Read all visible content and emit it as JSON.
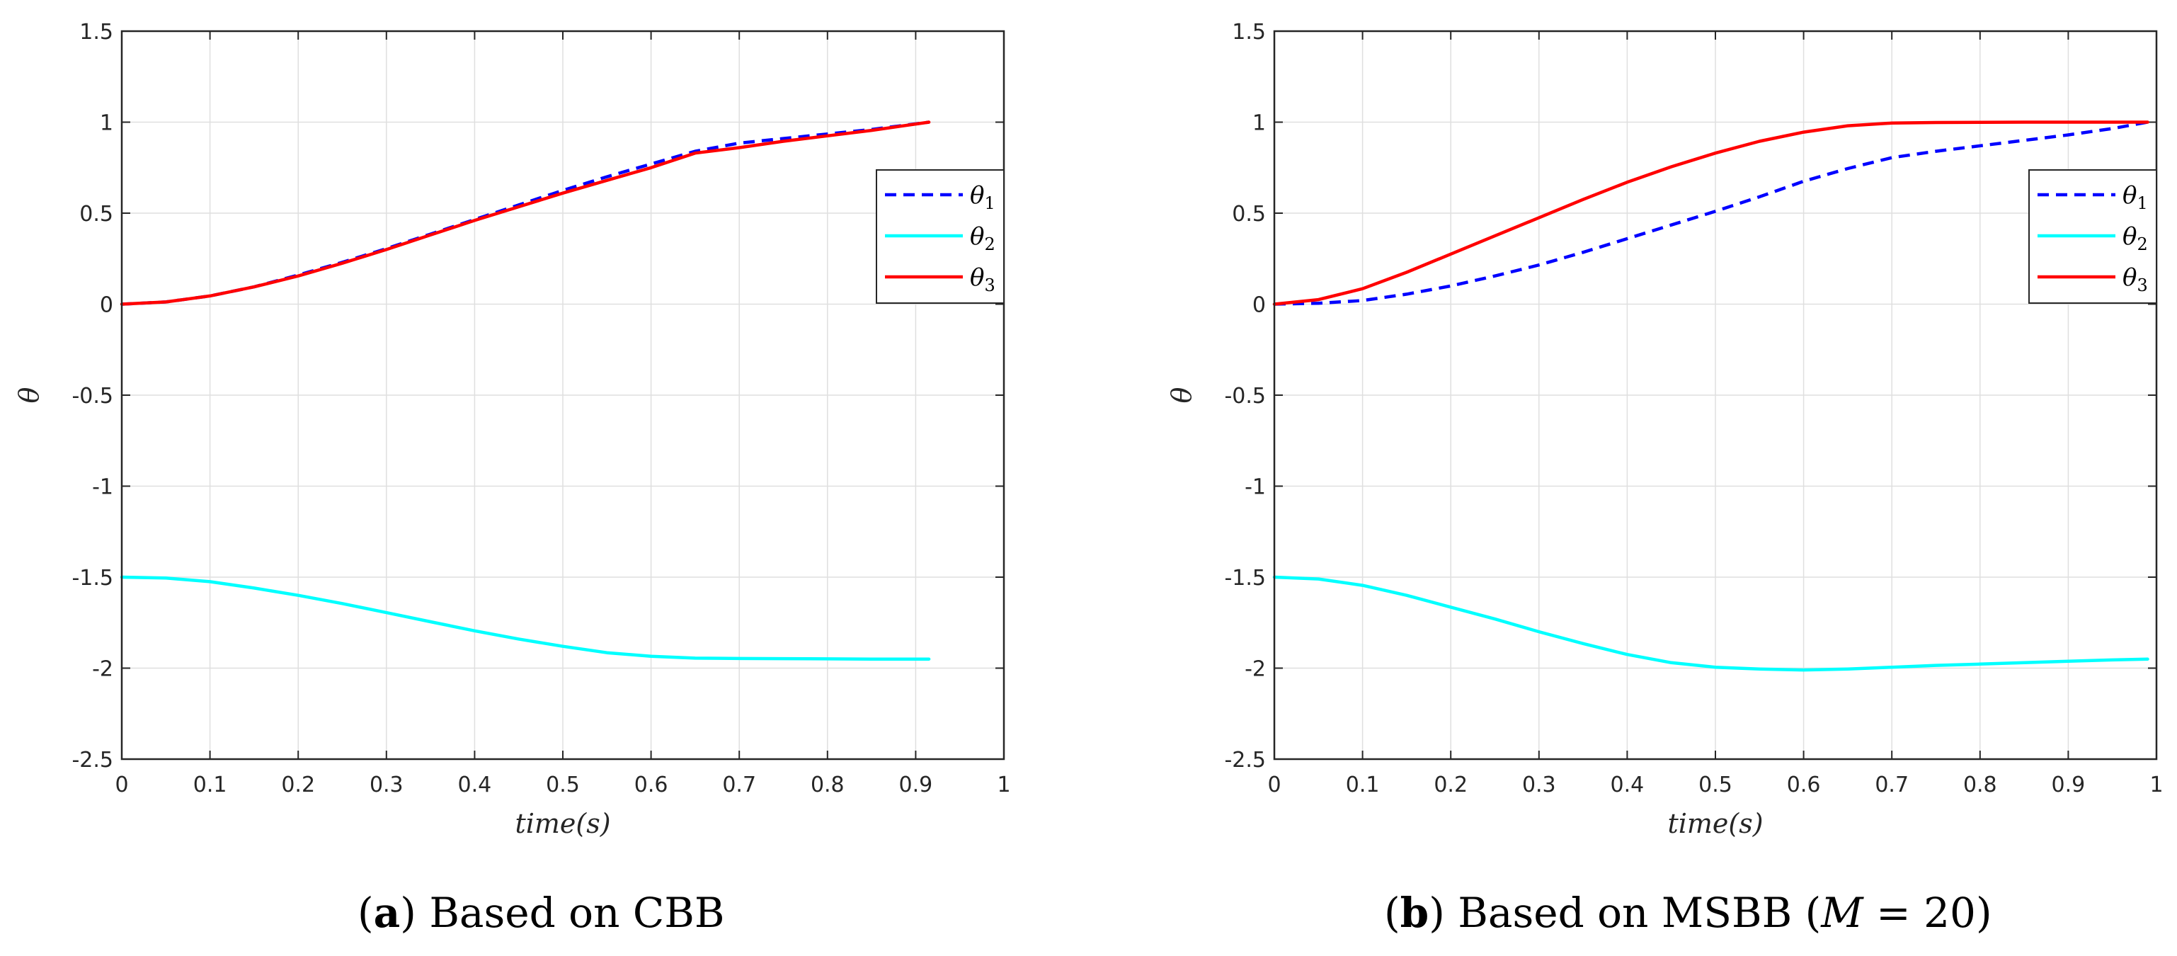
{
  "chart_data": [
    {
      "type": "line",
      "panel_tag": "a",
      "caption": "Based on CBB",
      "xlabel": "time(s)",
      "ylabel": "θ",
      "xlim": [
        0,
        1
      ],
      "ylim": [
        -2.5,
        1.5
      ],
      "xticks": [
        0,
        0.1,
        0.2,
        0.3,
        0.4,
        0.5,
        0.6,
        0.7,
        0.8,
        0.9,
        1
      ],
      "yticks": [
        -2.5,
        -2,
        -1.5,
        -1,
        -0.5,
        0,
        0.5,
        1,
        1.5
      ],
      "xtick_labels": [
        "0",
        "0.1",
        "0.2",
        "0.3",
        "0.4",
        "0.5",
        "0.6",
        "0.7",
        "0.8",
        "0.9",
        "1"
      ],
      "ytick_labels": [
        "-2.5",
        "-2",
        "-1.5",
        "-1",
        "-0.5",
        "0",
        "0.5",
        "1",
        "1.5"
      ],
      "grid": true,
      "legend_position": "right",
      "series": [
        {
          "name": "θ1",
          "base": "θ",
          "sub": "1",
          "color": "#0000ff",
          "dash": "dashed",
          "x": [
            0,
            0.05,
            0.1,
            0.15,
            0.2,
            0.25,
            0.3,
            0.35,
            0.4,
            0.45,
            0.5,
            0.55,
            0.6,
            0.65,
            0.7,
            0.75,
            0.8,
            0.85,
            0.915
          ],
          "y": [
            0,
            0.012,
            0.045,
            0.095,
            0.16,
            0.23,
            0.305,
            0.385,
            0.465,
            0.545,
            0.625,
            0.7,
            0.77,
            0.84,
            0.885,
            0.91,
            0.935,
            0.96,
            1.0
          ]
        },
        {
          "name": "θ2",
          "base": "θ",
          "sub": "2",
          "color": "#00ffff",
          "dash": "solid",
          "x": [
            0,
            0.05,
            0.1,
            0.15,
            0.2,
            0.25,
            0.3,
            0.35,
            0.4,
            0.45,
            0.5,
            0.55,
            0.6,
            0.65,
            0.7,
            0.75,
            0.8,
            0.85,
            0.915
          ],
          "y": [
            -1.5,
            -1.505,
            -1.525,
            -1.56,
            -1.6,
            -1.645,
            -1.695,
            -1.745,
            -1.795,
            -1.84,
            -1.88,
            -1.915,
            -1.935,
            -1.945,
            -1.947,
            -1.948,
            -1.949,
            -1.95,
            -1.95
          ]
        },
        {
          "name": "θ3",
          "base": "θ",
          "sub": "3",
          "color": "#ff0000",
          "dash": "solid",
          "x": [
            0,
            0.05,
            0.1,
            0.15,
            0.2,
            0.25,
            0.3,
            0.35,
            0.4,
            0.45,
            0.5,
            0.55,
            0.6,
            0.65,
            0.7,
            0.75,
            0.8,
            0.85,
            0.915
          ],
          "y": [
            0,
            0.012,
            0.045,
            0.095,
            0.155,
            0.225,
            0.3,
            0.38,
            0.46,
            0.535,
            0.61,
            0.68,
            0.75,
            0.83,
            0.86,
            0.895,
            0.925,
            0.955,
            1.0
          ]
        }
      ]
    },
    {
      "type": "line",
      "panel_tag": "b",
      "caption": "Based on MSBB (",
      "caption_math": "M",
      "caption_rest": " = 20)",
      "xlabel": "time(s)",
      "ylabel": "θ",
      "xlim": [
        0,
        1
      ],
      "ylim": [
        -2.5,
        1.5
      ],
      "xticks": [
        0,
        0.1,
        0.2,
        0.3,
        0.4,
        0.5,
        0.6,
        0.7,
        0.8,
        0.9,
        1
      ],
      "yticks": [
        -2.5,
        -2,
        -1.5,
        -1,
        -0.5,
        0,
        0.5,
        1,
        1.5
      ],
      "xtick_labels": [
        "0",
        "0.1",
        "0.2",
        "0.3",
        "0.4",
        "0.5",
        "0.6",
        "0.7",
        "0.8",
        "0.9",
        "1"
      ],
      "ytick_labels": [
        "-2.5",
        "-2",
        "-1.5",
        "-1",
        "-0.5",
        "0",
        "0.5",
        "1",
        "1.5"
      ],
      "grid": true,
      "legend_position": "right",
      "series": [
        {
          "name": "θ1",
          "base": "θ",
          "sub": "1",
          "color": "#0000ff",
          "dash": "dashed",
          "x": [
            0,
            0.05,
            0.1,
            0.15,
            0.2,
            0.25,
            0.3,
            0.35,
            0.4,
            0.45,
            0.5,
            0.55,
            0.6,
            0.65,
            0.7,
            0.75,
            0.8,
            0.85,
            0.9,
            0.95,
            0.99
          ],
          "y": [
            0,
            0.005,
            0.02,
            0.055,
            0.1,
            0.155,
            0.215,
            0.285,
            0.36,
            0.435,
            0.51,
            0.59,
            0.675,
            0.745,
            0.805,
            0.84,
            0.87,
            0.9,
            0.93,
            0.965,
            1.0
          ]
        },
        {
          "name": "θ2",
          "base": "θ",
          "sub": "2",
          "color": "#00ffff",
          "dash": "solid",
          "x": [
            0,
            0.05,
            0.1,
            0.15,
            0.2,
            0.25,
            0.3,
            0.35,
            0.4,
            0.45,
            0.5,
            0.55,
            0.6,
            0.65,
            0.7,
            0.75,
            0.8,
            0.85,
            0.9,
            0.95,
            0.99
          ],
          "y": [
            -1.5,
            -1.51,
            -1.545,
            -1.6,
            -1.665,
            -1.73,
            -1.8,
            -1.865,
            -1.925,
            -1.97,
            -1.995,
            -2.005,
            -2.01,
            -2.005,
            -1.995,
            -1.985,
            -1.978,
            -1.97,
            -1.962,
            -1.955,
            -1.95
          ]
        },
        {
          "name": "θ3",
          "base": "θ",
          "sub": "3",
          "color": "#ff0000",
          "dash": "solid",
          "x": [
            0,
            0.05,
            0.1,
            0.15,
            0.2,
            0.25,
            0.3,
            0.35,
            0.4,
            0.45,
            0.5,
            0.55,
            0.6,
            0.65,
            0.7,
            0.75,
            0.8,
            0.85,
            0.9,
            0.95,
            0.99
          ],
          "y": [
            0,
            0.025,
            0.085,
            0.175,
            0.275,
            0.375,
            0.475,
            0.575,
            0.67,
            0.755,
            0.83,
            0.895,
            0.945,
            0.98,
            0.995,
            0.998,
            0.999,
            1.0,
            1.0,
            1.0,
            1.0
          ]
        }
      ]
    }
  ]
}
